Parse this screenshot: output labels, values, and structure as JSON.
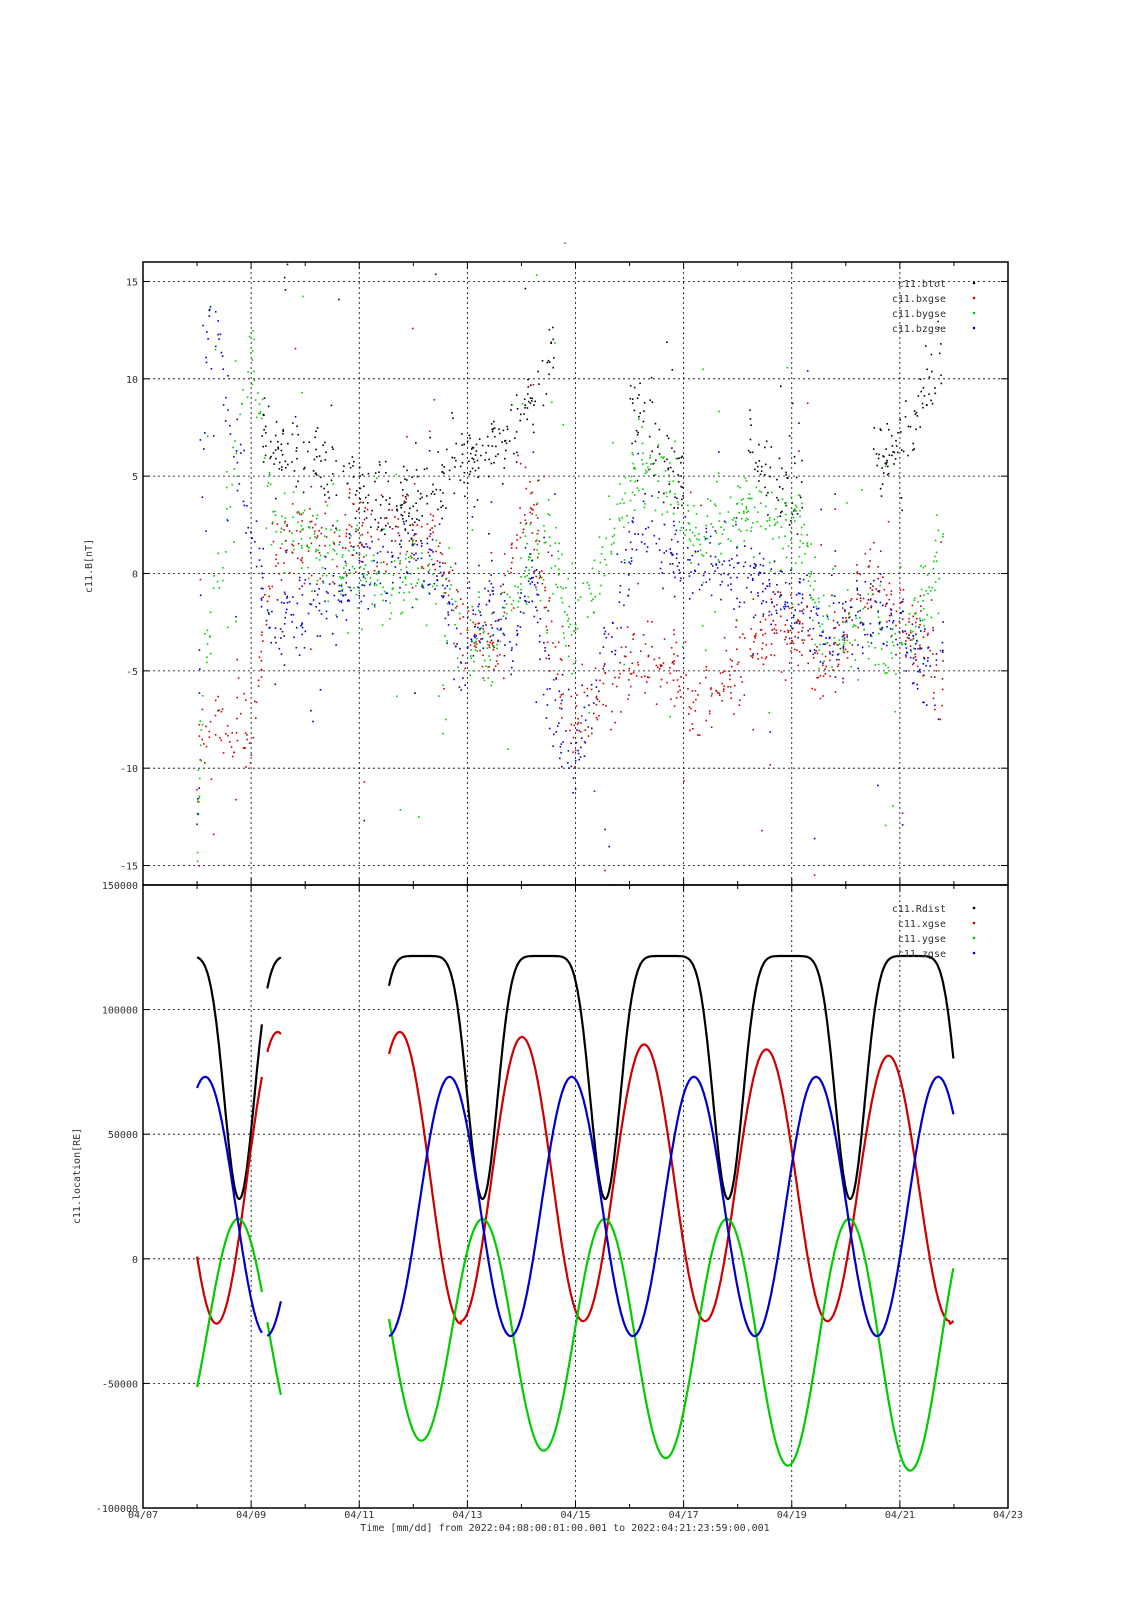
{
  "figure": {
    "title_mark": "-",
    "xlabel": "Time [mm/dd]  from 2022:04:08:00:01:00.001  to  2022:04:21:23:59:00.001",
    "x_tick_labels": [
      "04/07",
      "04/09",
      "04/11",
      "04/13",
      "04/15",
      "04/17",
      "04/19",
      "04/21",
      "04/23"
    ]
  },
  "chart_data": [
    {
      "type": "scatter",
      "ylabel": "c11.B[nT]",
      "xlim": [
        "04/07",
        "04/23"
      ],
      "ylim": [
        -16,
        16
      ],
      "y_ticks": [
        -15,
        -10,
        -5,
        0,
        5,
        10,
        15
      ],
      "y_tick_labels": [
        "-15",
        "-10",
        "-5",
        "0",
        "5",
        "10",
        "15"
      ],
      "grid": true,
      "legend_position": "top-right",
      "series": [
        {
          "name": "c11.btot",
          "color": "#000000",
          "band_center": [
            [
              8.0,
              null
            ],
            [
              9.2,
              7.5
            ],
            [
              9.4,
              6.5
            ],
            [
              11.5,
              3.5
            ],
            [
              12.0,
              3.0
            ],
            [
              12.4,
              4.0
            ],
            [
              12.8,
              6.0
            ],
            [
              13.8,
              6.5
            ],
            [
              14.2,
              9.0
            ],
            [
              14.6,
              12.0
            ],
            [
              15.0,
              null
            ],
            [
              16.0,
              8.5
            ],
            [
              16.5,
              6.5
            ],
            [
              17.0,
              4.5
            ],
            [
              17.3,
              null
            ],
            [
              18.2,
              6.5
            ],
            [
              18.7,
              5.0
            ],
            [
              19.2,
              4.0
            ],
            [
              19.5,
              null
            ],
            [
              20.5,
              6.0
            ],
            [
              21.0,
              6.5
            ],
            [
              21.4,
              8.5
            ],
            [
              21.8,
              12.0
            ]
          ]
        },
        {
          "name": "c11.bxgse",
          "color": "#cc0000",
          "band_center": [
            [
              8.0,
              -11.0
            ],
            [
              8.1,
              -8.0
            ],
            [
              9.0,
              -8.0
            ],
            [
              9.4,
              1.0
            ],
            [
              11.5,
              2.5
            ],
            [
              12.0,
              2.0
            ],
            [
              12.5,
              1.0
            ],
            [
              12.8,
              -2.0
            ],
            [
              13.5,
              -4.0
            ],
            [
              13.8,
              1.5
            ],
            [
              14.2,
              3.5
            ],
            [
              14.5,
              -3.0
            ],
            [
              15.0,
              -8.0
            ],
            [
              16.2,
              -4.0
            ],
            [
              16.8,
              -4.5
            ],
            [
              17.3,
              -7.0
            ],
            [
              18.2,
              -4.0
            ],
            [
              18.7,
              -2.5
            ],
            [
              19.2,
              -3.0
            ],
            [
              19.5,
              -5.0
            ],
            [
              20.5,
              0.0
            ],
            [
              21.0,
              -2.5
            ],
            [
              21.5,
              -3.5
            ],
            [
              21.8,
              -6.0
            ]
          ]
        },
        {
          "name": "c11.bygse",
          "color": "#00cc00",
          "band_center": [
            [
              8.0,
              -14.0
            ],
            [
              8.1,
              -6.0
            ],
            [
              9.0,
              12.0
            ],
            [
              9.4,
              3.0
            ],
            [
              11.5,
              -1.0
            ],
            [
              12.0,
              0.5
            ],
            [
              12.5,
              -0.5
            ],
            [
              12.8,
              -3.0
            ],
            [
              13.5,
              -4.0
            ],
            [
              13.8,
              -1.5
            ],
            [
              14.2,
              1.0
            ],
            [
              14.5,
              2.0
            ],
            [
              15.0,
              -3.0
            ],
            [
              16.2,
              6.0
            ],
            [
              16.8,
              4.0
            ],
            [
              17.3,
              2.0
            ],
            [
              18.2,
              3.5
            ],
            [
              18.7,
              2.0
            ],
            [
              19.2,
              2.0
            ],
            [
              19.5,
              -2.5
            ],
            [
              20.5,
              -3.0
            ],
            [
              21.0,
              -4.0
            ],
            [
              21.5,
              -1.0
            ],
            [
              21.8,
              2.0
            ]
          ]
        },
        {
          "name": "c11.bzgse",
          "color": "#0000cc",
          "band_center": [
            [
              8.0,
              -13.0
            ],
            [
              8.1,
              5.0
            ],
            [
              8.2,
              14.0
            ],
            [
              9.4,
              -3.0
            ],
            [
              11.5,
              1.0
            ],
            [
              12.0,
              1.0
            ],
            [
              12.5,
              0.0
            ],
            [
              12.8,
              -4.0
            ],
            [
              13.5,
              -1.0
            ],
            [
              13.8,
              -4.0
            ],
            [
              14.2,
              0.0
            ],
            [
              14.5,
              -6.0
            ],
            [
              15.0,
              -10.0
            ],
            [
              16.2,
              3.0
            ],
            [
              16.8,
              1.0
            ],
            [
              17.3,
              0.5
            ],
            [
              18.2,
              0.5
            ],
            [
              18.7,
              -1.5
            ],
            [
              19.2,
              -1.5
            ],
            [
              19.5,
              -3.0
            ],
            [
              20.5,
              -2.0
            ],
            [
              21.0,
              -3.0
            ],
            [
              21.5,
              -5.0
            ],
            [
              21.8,
              -4.0
            ]
          ]
        }
      ]
    },
    {
      "type": "line",
      "ylabel": "c11.location[RE]",
      "xlim": [
        "04/07",
        "04/23"
      ],
      "ylim": [
        -100000,
        150000
      ],
      "y_ticks": [
        -100000,
        -50000,
        0,
        50000,
        100000,
        150000
      ],
      "y_tick_labels": [
        "-100000",
        "-50000",
        "0",
        "50000",
        "100000",
        "150000"
      ],
      "grid": true,
      "legend_position": "top-right",
      "period_days": 2.26,
      "data_segments_days": [
        [
          8.0,
          9.2
        ],
        [
          9.3,
          9.55
        ],
        [
          11.55,
          21.99
        ]
      ],
      "series": [
        {
          "name": "c11.Rdist",
          "color": "#000000",
          "perigee_days": [
            8.78,
            13.28,
            15.55,
            17.82,
            20.08
          ],
          "perigee_value": 24000,
          "apogee_value": 121500
        },
        {
          "name": "c11.xgse",
          "color": "#cc0000",
          "first_peak_day": 11.75,
          "peak_values": [
            91000,
            89000,
            86000,
            84000,
            81500,
            93000
          ],
          "trough_values": [
            -26000,
            -25000,
            -25000,
            -25000,
            -25000,
            -26000
          ]
        },
        {
          "name": "c11.ygse",
          "color": "#00cc00",
          "first_trough_day": 12.15,
          "trough_values": [
            -73000,
            -77000,
            -80000,
            -83000,
            -85000,
            -64000
          ],
          "peak_value": 16000
        },
        {
          "name": "c11.zgse",
          "color": "#0000cc",
          "first_peak_day": 8.15,
          "peak_value": 73000,
          "trough_value": -31000
        }
      ]
    }
  ]
}
